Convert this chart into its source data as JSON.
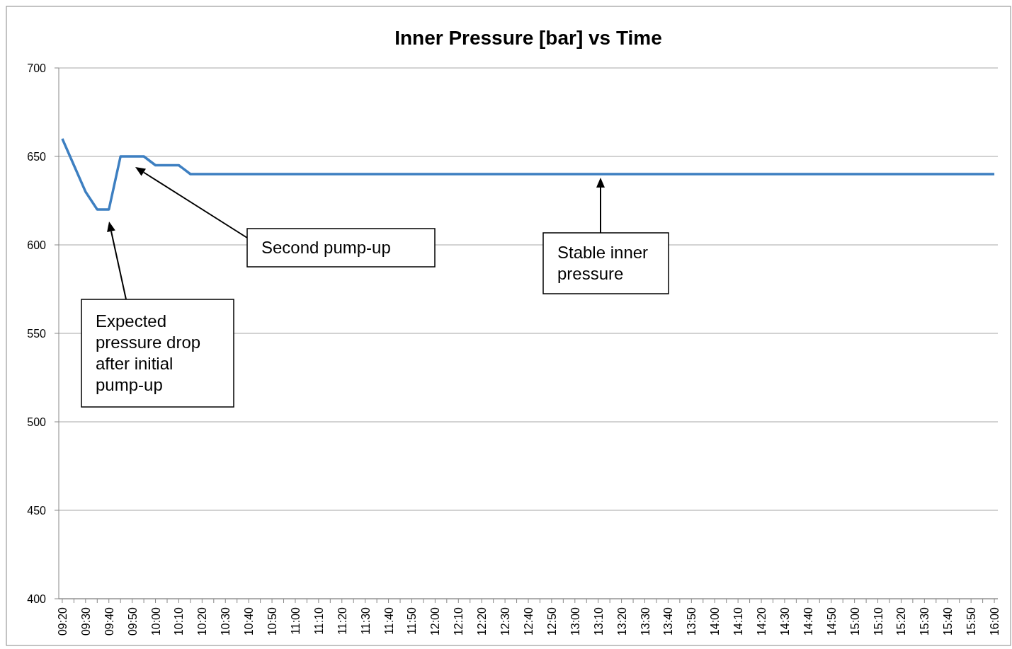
{
  "chart_data": {
    "type": "line",
    "title": "Inner Pressure [bar] vs Time",
    "categories": [
      "09:20",
      null,
      "09:30",
      null,
      "09:40",
      null,
      "09:50",
      null,
      "10:00",
      null,
      "10:10",
      null,
      "10:20",
      null,
      "10:30",
      null,
      "10:40",
      null,
      "10:50",
      null,
      "11:00",
      null,
      "11:10",
      null,
      "11:20",
      null,
      "11:30",
      null,
      "11:40",
      null,
      "11:50",
      null,
      "12:00",
      null,
      "12:10",
      null,
      "12:20",
      null,
      "12:30",
      null,
      "12:40",
      null,
      "12:50",
      null,
      "13:00",
      null,
      "13:10",
      null,
      "13:20",
      null,
      "13:30",
      null,
      "13:40",
      null,
      "13:50",
      null,
      "14:00",
      null,
      "14:10",
      null,
      "14:20",
      null,
      "14:30",
      null,
      "14:40",
      null,
      "14:50",
      null,
      "15:00",
      null,
      "15:10",
      null,
      "15:20",
      null,
      "15:30",
      null,
      "15:40",
      null,
      "15:50",
      null,
      "16:00"
    ],
    "series": [
      {
        "color": "#3d7fc1",
        "values": [
          660,
          645,
          630,
          620,
          620,
          650,
          650,
          650,
          645,
          645,
          645,
          640,
          640,
          640,
          640,
          640,
          640,
          640,
          640,
          640,
          640,
          640,
          640,
          640,
          640,
          640,
          640,
          640,
          640,
          640,
          640,
          640,
          640,
          640,
          640,
          640,
          640,
          640,
          640,
          640,
          640,
          640,
          640,
          640,
          640,
          640,
          640,
          640,
          640,
          640,
          640,
          640,
          640,
          640,
          640,
          640,
          640,
          640,
          640,
          640,
          640,
          640,
          640,
          640,
          640,
          640,
          640,
          640,
          640,
          640,
          640,
          640,
          640,
          640,
          640,
          640,
          640,
          640,
          640,
          640,
          640
        ]
      }
    ],
    "ylim": [
      400,
      700
    ],
    "yticks": [
      400,
      450,
      500,
      550,
      600,
      650,
      700
    ],
    "grid": "y",
    "legend": false,
    "marker": "none",
    "line_style": "solid",
    "annotations": [
      "Expected pressure drop after initial pump-up",
      "Second pump-up",
      "Stable inner pressure"
    ]
  }
}
